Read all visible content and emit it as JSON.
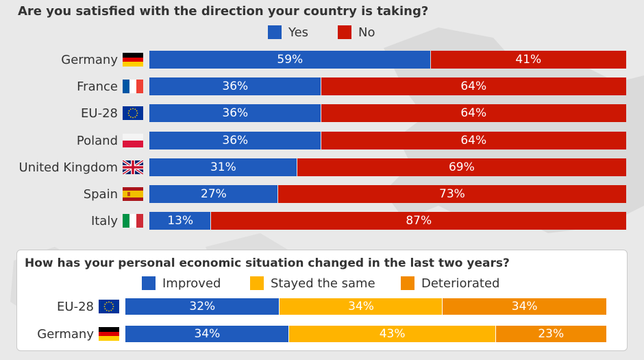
{
  "colors": {
    "yes": "#1f5bbd",
    "no": "#cc1703",
    "improved": "#1f5bbd",
    "stayed": "#ffb400",
    "deteriorated": "#f28a00"
  },
  "chart_data": [
    {
      "type": "bar",
      "orientation": "horizontal",
      "stacked": true,
      "title": "Are you satisfied with the direction your country is taking?",
      "legend_position": "top",
      "categories": [
        "Germany",
        "France",
        "EU-28",
        "Poland",
        "United Kingdom",
        "Spain",
        "Italy"
      ],
      "flags": [
        "germany-flag",
        "france-flag",
        "eu-flag",
        "poland-flag",
        "uk-flag",
        "spain-flag",
        "italy-flag"
      ],
      "series": [
        {
          "name": "Yes",
          "values": [
            59,
            36,
            36,
            36,
            31,
            27,
            13
          ],
          "labels": [
            "59%",
            "36%",
            "36%",
            "36%",
            "31%",
            "27%",
            "13%"
          ]
        },
        {
          "name": "No",
          "values": [
            41,
            64,
            64,
            64,
            69,
            73,
            87
          ],
          "labels": [
            "41%",
            "64%",
            "64%",
            "64%",
            "69%",
            "73%",
            "87%"
          ]
        }
      ],
      "xlim": [
        0,
        100
      ]
    },
    {
      "type": "bar",
      "orientation": "horizontal",
      "stacked": true,
      "title": "How has your personal economic situation changed in the last two years?",
      "legend_position": "top",
      "categories": [
        "EU-28",
        "Germany"
      ],
      "flags": [
        "eu-flag",
        "germany-flag"
      ],
      "series": [
        {
          "name": "Improved",
          "values": [
            32,
            34
          ],
          "labels": [
            "32%",
            "34%"
          ]
        },
        {
          "name": "Stayed the same",
          "values": [
            34,
            43
          ],
          "labels": [
            "34%",
            "43%"
          ]
        },
        {
          "name": "Deteriorated",
          "values": [
            34,
            23
          ],
          "labels": [
            "34%",
            "23%"
          ]
        }
      ],
      "xlim": [
        0,
        100
      ]
    }
  ]
}
